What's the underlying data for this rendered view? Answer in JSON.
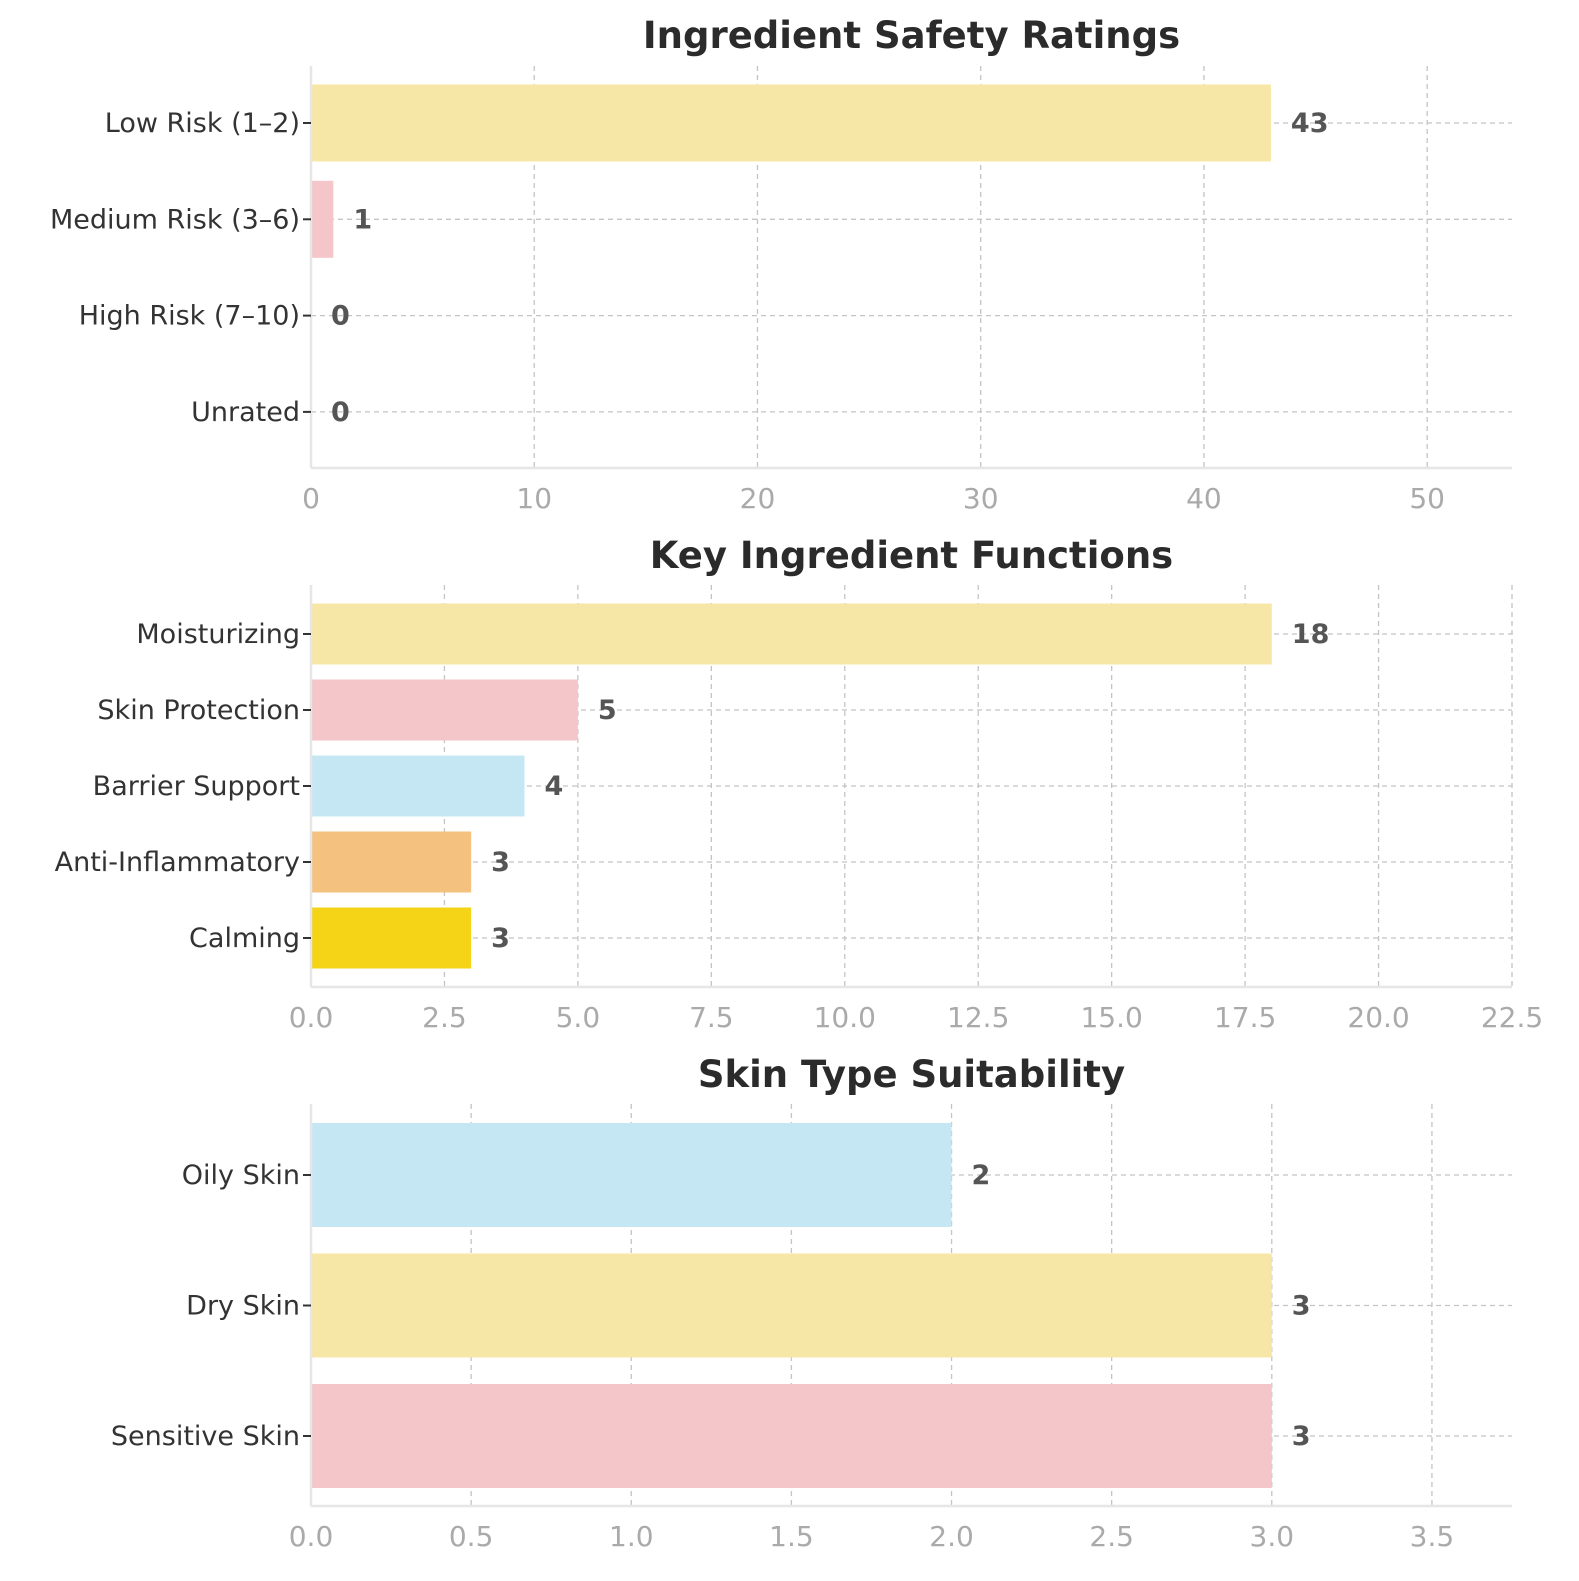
{
  "chart_data": [
    {
      "type": "bar",
      "orientation": "horizontal",
      "title": "Ingredient Safety Ratings",
      "categories": [
        "Low Risk (1–2)",
        "Medium Risk (3–6)",
        "High Risk (7–10)",
        "Unrated"
      ],
      "values": [
        43,
        1,
        0,
        0
      ],
      "value_labels": [
        "43",
        "1",
        "0",
        "0"
      ],
      "colors": [
        "#f7e7a6",
        "#f4c6c9",
        "#f4c6c9",
        "#f4c6c9"
      ],
      "xlim": [
        0,
        53.8
      ],
      "xticks": [
        0,
        10,
        20,
        30,
        40,
        50
      ],
      "xtick_labels": [
        "0",
        "10",
        "20",
        "30",
        "40",
        "50"
      ],
      "grid": true
    },
    {
      "type": "bar",
      "orientation": "horizontal",
      "title": "Key Ingredient Functions",
      "categories": [
        "Moisturizing",
        "Skin Protection",
        "Barrier Support",
        "Anti-Inflammatory",
        "Calming"
      ],
      "values": [
        18,
        5,
        4,
        3,
        3
      ],
      "value_labels": [
        "18",
        "5",
        "4",
        "3",
        "3"
      ],
      "colors": [
        "#f7e7a6",
        "#f4c6c9",
        "#c5e7f3",
        "#f4c17e",
        "#f5d316"
      ],
      "xlim": [
        0,
        22.5
      ],
      "xticks": [
        0,
        2.5,
        5,
        7.5,
        10,
        12.5,
        15,
        17.5,
        20,
        22.5
      ],
      "xtick_labels": [
        "0.0",
        "2.5",
        "5.0",
        "7.5",
        "10.0",
        "12.5",
        "15.0",
        "17.5",
        "20.0",
        "22.5"
      ],
      "grid": true
    },
    {
      "type": "bar",
      "orientation": "horizontal",
      "title": "Skin Type Suitability",
      "categories": [
        "Oily Skin",
        "Dry Skin",
        "Sensitive Skin"
      ],
      "values": [
        2,
        3,
        3
      ],
      "value_labels": [
        "2",
        "3",
        "3"
      ],
      "colors": [
        "#c5e7f3",
        "#f7e7a6",
        "#f4c6c9"
      ],
      "xlim": [
        0,
        3.75
      ],
      "xticks": [
        0,
        0.5,
        1,
        1.5,
        2,
        2.5,
        3,
        3.5
      ],
      "xtick_labels": [
        "0.0",
        "0.5",
        "1.0",
        "1.5",
        "2.0",
        "2.5",
        "3.0",
        "3.5"
      ],
      "grid": true
    }
  ]
}
